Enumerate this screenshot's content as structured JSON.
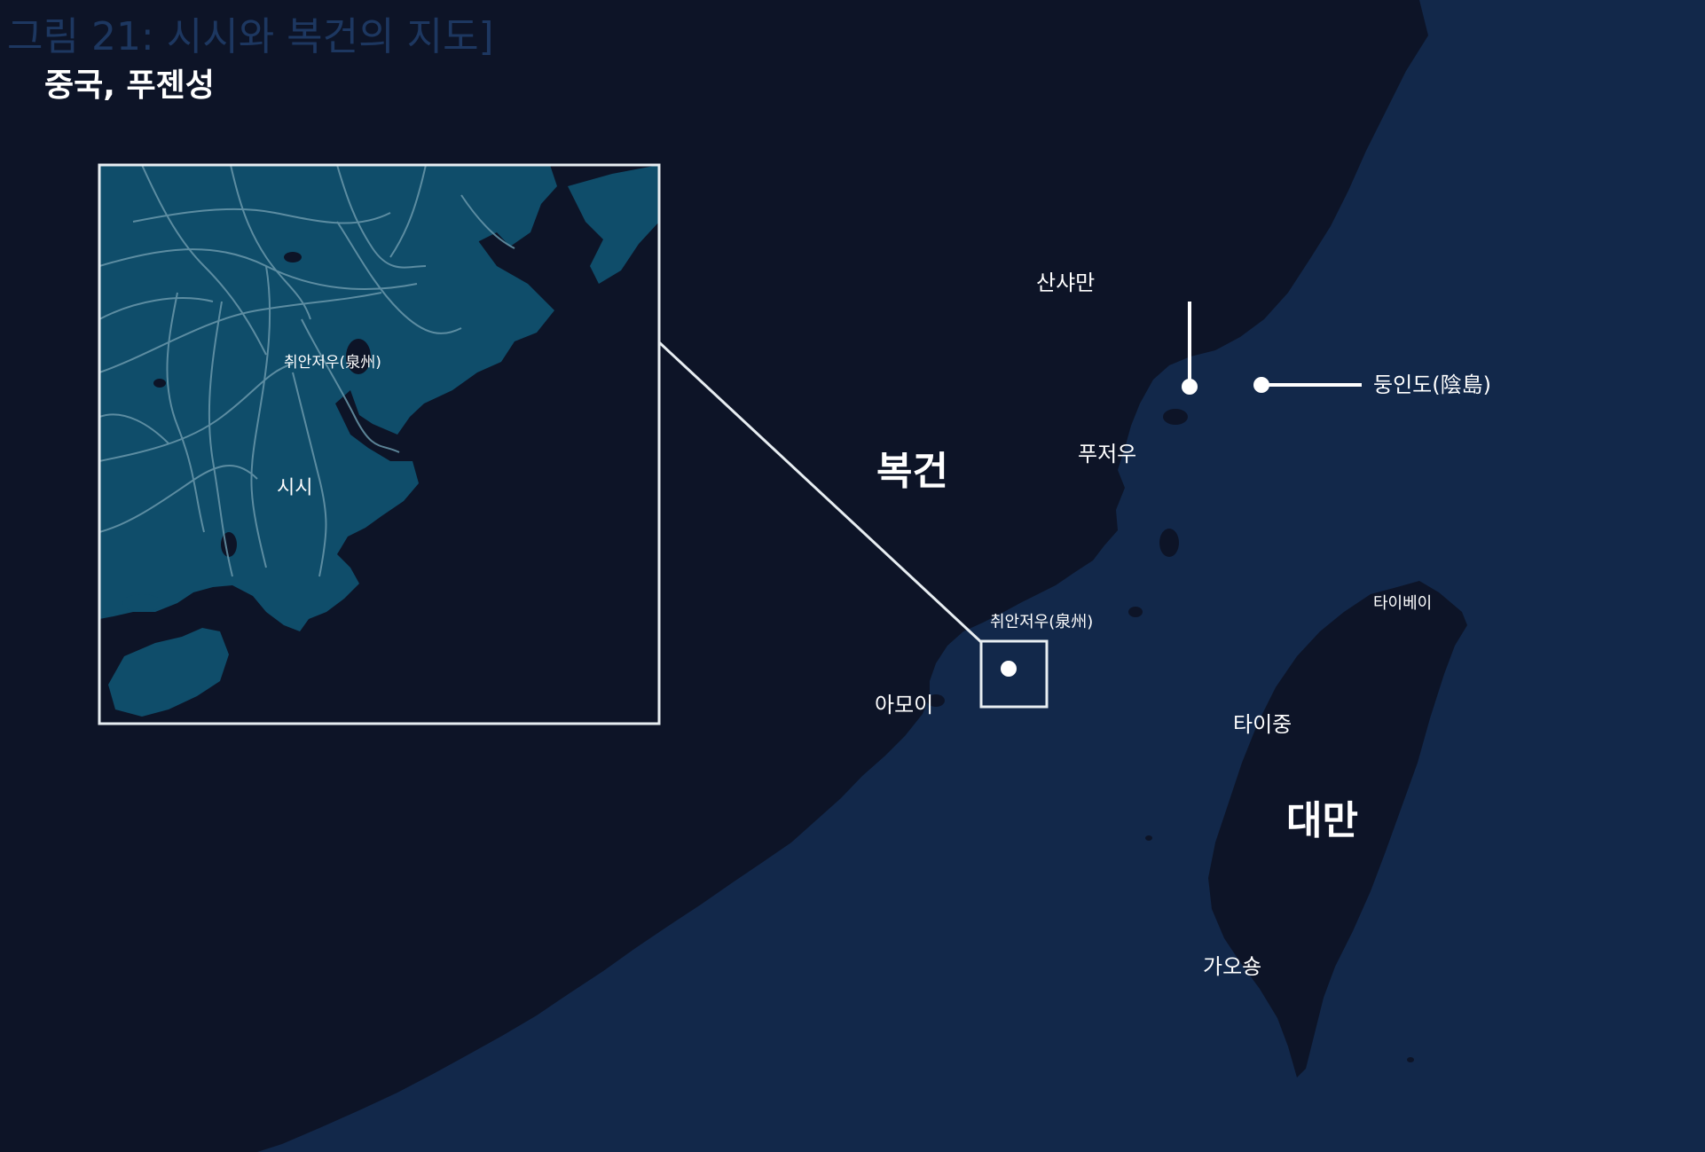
{
  "figure_caption": "그림 21: 시시와 복건의 지도]",
  "region_title": "중국, 푸젠성",
  "places": {
    "fujian": "복건",
    "sanshawan": "산샤만",
    "dongyindao": "둥인도(陰島)",
    "fuzhou": "푸저우",
    "quanzhou": "취안저우(泉州)",
    "amoy": "아모이",
    "taipei": "타이베이",
    "taichung": "타이중",
    "taiwan": "대만",
    "kaohsiung": "가오숑"
  },
  "inset": {
    "city": "취안저우(泉州)",
    "district": "시시"
  },
  "colors": {
    "sea": "#12284a",
    "land": "#0d1427",
    "inset_land": "#0f4d6a",
    "roads": "#6a98ab",
    "frame": "#e8eef2",
    "text": "#ffffff"
  }
}
